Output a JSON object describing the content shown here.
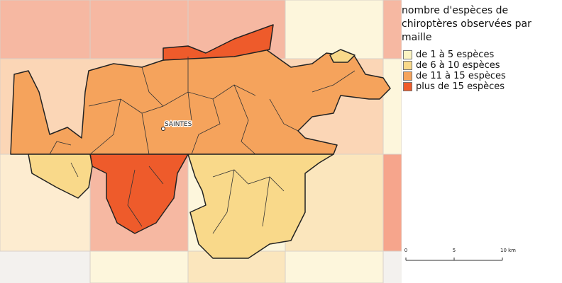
{
  "legend": {
    "title": "nombre d'espèces de chiroptères observées par maille",
    "items": [
      {
        "label": "de 1 à 5 espèces",
        "color": "#fcf4c2"
      },
      {
        "label": "de 6 à 10 espèces",
        "color": "#f9d98a"
      },
      {
        "label": "de 11 à 15 espèces",
        "color": "#f5a35c"
      },
      {
        "label": "plus de 15 espèces",
        "color": "#ee5b2b"
      }
    ]
  },
  "map": {
    "city_label": "SAINTES"
  },
  "scale": {
    "labels": [
      "0",
      "5",
      "10 km"
    ]
  }
}
